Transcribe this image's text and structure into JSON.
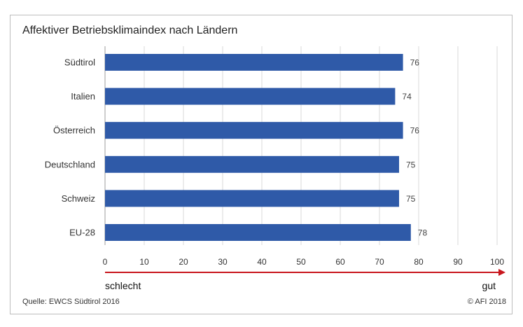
{
  "title": "Affektiver Betriebsklimaindex nach Ländern",
  "footer": {
    "source": "Quelle: EWCS Südtirol 2016",
    "copyright": "© AFI 2018"
  },
  "chart_data": {
    "type": "bar",
    "orientation": "horizontal",
    "title": "Affektiver Betriebsklimaindex nach Ländern",
    "categories": [
      "Südtirol",
      "Italien",
      "Österreich",
      "Deutschland",
      "Schweiz",
      "EU-28"
    ],
    "values": [
      76,
      74,
      76,
      75,
      75,
      78
    ],
    "data_labels": [
      "76",
      "74",
      "76",
      "75",
      "75",
      "78"
    ],
    "xlim": [
      0,
      100
    ],
    "x_ticks": [
      0,
      10,
      20,
      30,
      40,
      50,
      60,
      70,
      80,
      90,
      100
    ],
    "grid": "vertical",
    "scale_arrow": {
      "left_label": "schlecht",
      "right_label": "gut"
    },
    "colors": {
      "bar": "#2f5aa8",
      "arrow": "#c8161d",
      "grid": "#d9d9d9"
    }
  }
}
